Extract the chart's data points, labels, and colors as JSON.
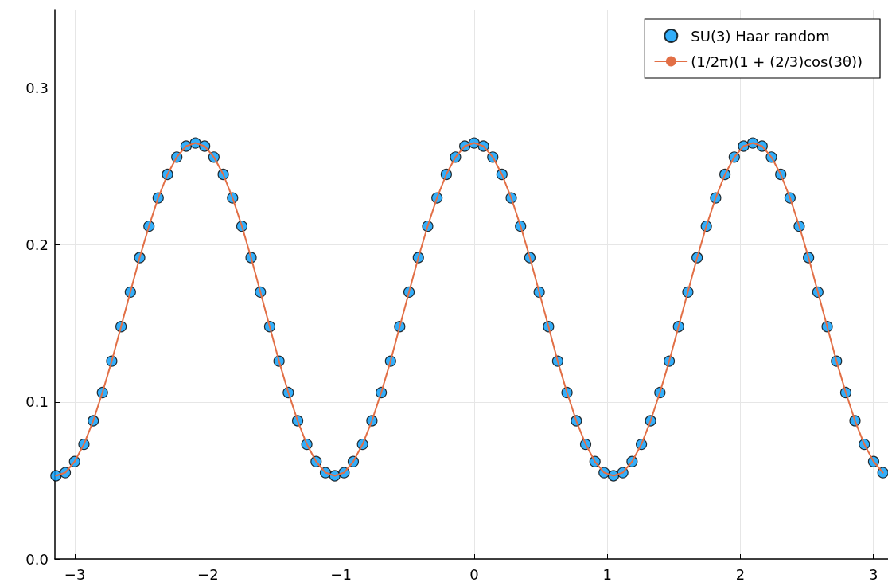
{
  "chart_data": {
    "type": "scatter",
    "legend": "top right",
    "grid": true,
    "marker": "circle",
    "xlim": [
      -3.15,
      3.11
    ],
    "ylim": [
      0,
      0.35
    ],
    "xticks": [
      {
        "value": -3,
        "label": "−3"
      },
      {
        "value": -2,
        "label": "−2"
      },
      {
        "value": -1,
        "label": "−1"
      },
      0,
      1,
      2,
      3
    ],
    "yticks": [
      {
        "value": 0,
        "label": "0.0"
      },
      0.1,
      0.2,
      0.3
    ],
    "x": [
      -3.142,
      -3.072,
      -3.002,
      -2.932,
      -2.862,
      -2.793,
      -2.723,
      -2.653,
      -2.583,
      -2.513,
      -2.443,
      -2.374,
      -2.304,
      -2.234,
      -2.164,
      -2.094,
      -2.025,
      -1.955,
      -1.885,
      -1.815,
      -1.745,
      -1.676,
      -1.606,
      -1.536,
      -1.466,
      -1.396,
      -1.326,
      -1.257,
      -1.187,
      -1.117,
      -1.047,
      -0.977,
      -0.908,
      -0.838,
      -0.768,
      -0.698,
      -0.628,
      -0.559,
      -0.489,
      -0.419,
      -0.349,
      -0.279,
      -0.209,
      -0.14,
      -0.07,
      0,
      0.07,
      0.14,
      0.209,
      0.279,
      0.349,
      0.419,
      0.489,
      0.559,
      0.628,
      0.698,
      0.768,
      0.838,
      0.908,
      0.977,
      1.047,
      1.117,
      1.187,
      1.257,
      1.326,
      1.396,
      1.466,
      1.536,
      1.606,
      1.676,
      1.745,
      1.815,
      1.885,
      1.955,
      2.025,
      2.094,
      2.164,
      2.234,
      2.304,
      2.374,
      2.443,
      2.513,
      2.583,
      2.653,
      2.723,
      2.793,
      2.862,
      2.932,
      3.002,
      3.072
    ],
    "series": [
      {
        "name": "SU(3) Haar random",
        "color": "#009af9",
        "values": [
          0.053,
          0.055,
          0.062,
          0.073,
          0.088,
          0.106,
          0.126,
          0.148,
          0.17,
          0.192,
          0.212,
          0.23,
          0.245,
          0.256,
          0.263,
          0.265,
          0.263,
          0.256,
          0.245,
          0.23,
          0.212,
          0.192,
          0.17,
          0.148,
          0.126,
          0.106,
          0.088,
          0.073,
          0.062,
          0.055,
          0.053,
          0.055,
          0.062,
          0.073,
          0.088,
          0.106,
          0.126,
          0.148,
          0.17,
          0.192,
          0.212,
          0.23,
          0.245,
          0.256,
          0.263,
          0.265,
          0.263,
          0.256,
          0.245,
          0.23,
          0.212,
          0.192,
          0.17,
          0.148,
          0.126,
          0.106,
          0.088,
          0.073,
          0.062,
          0.055,
          0.053,
          0.055,
          0.062,
          0.073,
          0.088,
          0.106,
          0.126,
          0.148,
          0.17,
          0.192,
          0.212,
          0.23,
          0.245,
          0.256,
          0.263,
          0.265,
          0.263,
          0.256,
          0.245,
          0.23,
          0.212,
          0.192,
          0.17,
          0.148,
          0.126,
          0.106,
          0.088,
          0.073,
          0.062,
          0.055
        ]
      },
      {
        "name": "(1/2π)(1 + (2/3)cos(3θ))",
        "type": "line",
        "marker": "none",
        "line_style": "solid",
        "color": "#e26f46",
        "values": [
          0.053,
          0.055,
          0.062,
          0.073,
          0.088,
          0.106,
          0.126,
          0.148,
          0.17,
          0.192,
          0.212,
          0.23,
          0.245,
          0.256,
          0.263,
          0.265,
          0.263,
          0.256,
          0.245,
          0.23,
          0.212,
          0.192,
          0.17,
          0.148,
          0.126,
          0.106,
          0.088,
          0.073,
          0.062,
          0.055,
          0.053,
          0.055,
          0.062,
          0.073,
          0.088,
          0.106,
          0.126,
          0.148,
          0.17,
          0.192,
          0.212,
          0.23,
          0.245,
          0.256,
          0.263,
          0.265,
          0.263,
          0.256,
          0.245,
          0.23,
          0.212,
          0.192,
          0.17,
          0.148,
          0.126,
          0.106,
          0.088,
          0.073,
          0.062,
          0.055,
          0.053,
          0.055,
          0.062,
          0.073,
          0.088,
          0.106,
          0.126,
          0.148,
          0.17,
          0.192,
          0.212,
          0.23,
          0.245,
          0.256,
          0.263,
          0.265,
          0.263,
          0.256,
          0.245,
          0.23,
          0.212,
          0.192,
          0.17,
          0.148,
          0.126,
          0.106,
          0.088,
          0.073,
          0.062,
          0.055
        ]
      }
    ]
  }
}
